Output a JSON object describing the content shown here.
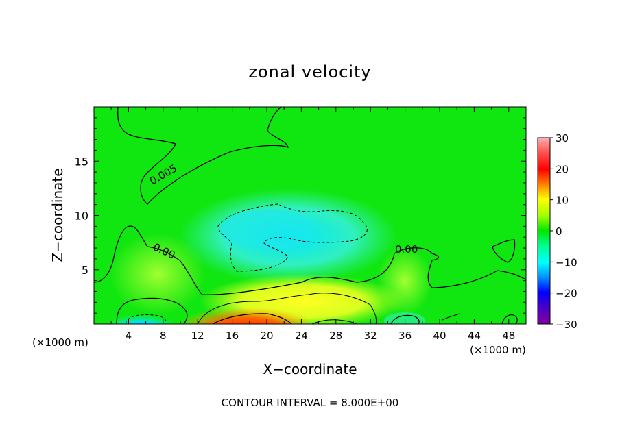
{
  "chart_data": {
    "type": "heatmap",
    "title": "zonal velocity",
    "xlabel": "X−coordinate",
    "ylabel": "Z−coordinate",
    "x_unit_left": "(×1000 m)",
    "x_unit_right": "(×1000 m)",
    "xlim": [
      0,
      50
    ],
    "ylim": [
      0,
      20
    ],
    "x_ticks": [
      4,
      8,
      12,
      16,
      20,
      24,
      28,
      32,
      36,
      40,
      44,
      48
    ],
    "y_ticks": [
      5,
      10,
      15
    ],
    "colorbar": {
      "range": [
        -30,
        30
      ],
      "ticks": [
        30,
        20,
        10,
        0,
        -10,
        -20,
        -30
      ],
      "tick_labels": [
        "30",
        "20",
        "10",
        "0",
        "−10",
        "−20",
        "−30"
      ]
    },
    "contour_labels": [
      "0.005",
      "0.00",
      "0.00"
    ],
    "contour_interval_text": "CONTOUR INTERVAL = 8.000E+00",
    "features": [
      {
        "name": "near-zero background",
        "value": 2
      },
      {
        "name": "upper-middle negative region",
        "x_center": 20,
        "z_center": 8.5,
        "value": -8
      },
      {
        "name": "surface jet",
        "x_center": 19,
        "z_center": 0.5,
        "value": 22
      },
      {
        "name": "low-level positive band",
        "x_center": 26,
        "z_center": 2,
        "value": 10
      },
      {
        "name": "surface negative cell",
        "x_center": 6,
        "z_center": 0.5,
        "value": -10
      }
    ]
  },
  "colors": {
    "background": "#00e600",
    "axis": "#000000"
  }
}
